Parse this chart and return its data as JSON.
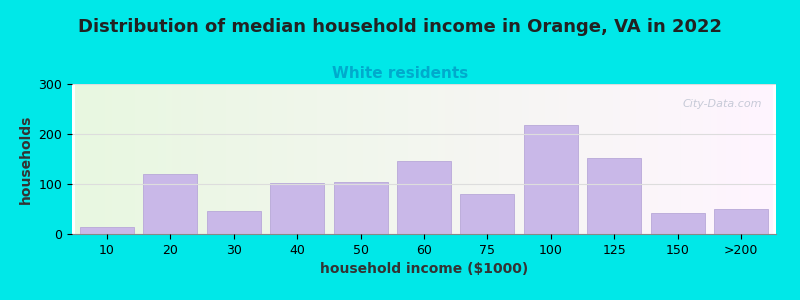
{
  "title": "Distribution of median household income in Orange, VA in 2022",
  "subtitle": "White residents",
  "xlabel": "household income ($1000)",
  "ylabel": "households",
  "title_fontsize": 13,
  "subtitle_fontsize": 11,
  "subtitle_color": "#00aacc",
  "ylabel_fontsize": 10,
  "xlabel_fontsize": 10,
  "bar_color": "#c9b8e8",
  "bar_edgecolor": "#b8a8d8",
  "background_outer": "#00e8e8",
  "categories": [
    "10",
    "20",
    "30",
    "40",
    "50",
    "60",
    "75",
    "100",
    "125",
    "150",
    ">200"
  ],
  "values": [
    15,
    120,
    47,
    102,
    105,
    147,
    80,
    218,
    153,
    43,
    50
  ],
  "ylim": [
    0,
    300
  ],
  "yticks": [
    0,
    100,
    200,
    300
  ],
  "grid_color": "#dddddd",
  "watermark_text": "City-Data.com",
  "watermark_color": "#b0b8c8",
  "watermark_alpha": 0.7
}
